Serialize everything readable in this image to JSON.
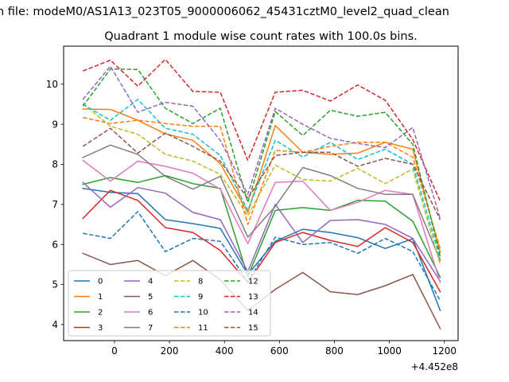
{
  "suptitle": "n file: modeM0/AS1A13_023T05_9000006062_45431cztM0_level2_quad_clean",
  "chart_data": {
    "type": "line",
    "title": "Quadrant 1 module wise count rates with 100.0s bins.",
    "xlabel": "",
    "ylabel": "",
    "x_offset_label": "+4.452e8",
    "xlim": [
      -185,
      1250
    ],
    "ylim": [
      3.6,
      10.95
    ],
    "xticks": [
      0,
      200,
      400,
      600,
      800,
      1000,
      1200
    ],
    "xtick_labels": [
      "0",
      "200",
      "400",
      "600",
      "800",
      "1000",
      "1200"
    ],
    "yticks": [
      4,
      5,
      6,
      7,
      8,
      9,
      10
    ],
    "ytick_labels": [
      "4",
      "5",
      "6",
      "7",
      "8",
      "9",
      "10"
    ],
    "legend_position": "lower-left",
    "legend_columns": 4,
    "x": [
      -115,
      -15,
      85,
      185,
      285,
      385,
      485,
      585,
      685,
      785,
      885,
      985,
      1085,
      1185
    ],
    "series": [
      {
        "name": "0",
        "color": "#1f77b4",
        "dashed": false,
        "values": [
          7.4,
          7.3,
          7.27,
          6.62,
          6.52,
          6.4,
          5.25,
          6.08,
          6.38,
          6.3,
          6.17,
          5.9,
          6.14,
          4.35
        ]
      },
      {
        "name": "1",
        "color": "#ff7f0e",
        "dashed": false,
        "values": [
          9.38,
          9.37,
          9.1,
          8.76,
          8.6,
          8.02,
          6.8,
          8.97,
          8.3,
          8.25,
          8.28,
          8.55,
          8.38,
          5.8
        ]
      },
      {
        "name": "2",
        "color": "#2ca02c",
        "dashed": false,
        "values": [
          7.5,
          7.67,
          7.55,
          7.72,
          7.52,
          7.4,
          5.2,
          6.85,
          6.92,
          6.85,
          7.1,
          7.08,
          6.58,
          5.18
        ]
      },
      {
        "name": "3",
        "color": "#d62728",
        "dashed": false,
        "values": [
          6.65,
          7.35,
          7.1,
          6.42,
          6.3,
          5.85,
          5.05,
          6.05,
          6.3,
          6.1,
          5.95,
          6.42,
          6.05,
          4.82
        ]
      },
      {
        "name": "4",
        "color": "#9467bd",
        "dashed": false,
        "values": [
          7.55,
          6.93,
          7.42,
          7.28,
          6.8,
          6.62,
          5.32,
          7.0,
          6.05,
          6.6,
          6.62,
          6.5,
          6.15,
          5.08
        ]
      },
      {
        "name": "5",
        "color": "#8c564b",
        "dashed": false,
        "values": [
          5.78,
          5.5,
          5.6,
          5.22,
          5.6,
          5.12,
          4.35,
          4.88,
          5.3,
          4.82,
          4.75,
          4.97,
          5.25,
          3.9
        ]
      },
      {
        "name": "6",
        "color": "#e377c2",
        "dashed": false,
        "values": [
          8.1,
          7.58,
          8.08,
          7.95,
          7.78,
          7.38,
          6.02,
          7.55,
          7.58,
          6.85,
          7.05,
          7.35,
          7.25,
          5.05
        ]
      },
      {
        "name": "7",
        "color": "#7f7f7f",
        "dashed": false,
        "values": [
          8.17,
          8.48,
          8.25,
          7.7,
          7.38,
          7.7,
          6.18,
          6.95,
          7.92,
          7.72,
          7.4,
          7.25,
          7.25,
          5.6
        ]
      },
      {
        "name": "8",
        "color": "#bcbd22",
        "dashed": true,
        "values": [
          9.52,
          8.95,
          8.75,
          8.25,
          8.08,
          7.75,
          6.72,
          7.98,
          7.62,
          7.58,
          7.9,
          7.52,
          7.88,
          5.5
        ]
      },
      {
        "name": "9",
        "color": "#17becf",
        "dashed": true,
        "values": [
          9.5,
          9.1,
          9.62,
          8.9,
          8.75,
          8.22,
          6.85,
          8.6,
          8.18,
          8.55,
          8.12,
          8.38,
          8.0,
          5.65
        ]
      },
      {
        "name": "10",
        "color": "#1f77b4",
        "dashed": true,
        "values": [
          6.28,
          6.15,
          6.82,
          5.82,
          6.15,
          6.08,
          5.08,
          6.18,
          6.0,
          6.05,
          5.78,
          6.15,
          5.82,
          4.6
        ]
      },
      {
        "name": "11",
        "color": "#ff7f0e",
        "dashed": true,
        "values": [
          9.17,
          9.02,
          9.1,
          9.02,
          8.95,
          8.95,
          6.5,
          8.35,
          8.3,
          8.45,
          8.55,
          8.55,
          8.18,
          5.9
        ]
      },
      {
        "name": "12",
        "color": "#2ca02c",
        "dashed": true,
        "values": [
          9.45,
          10.38,
          10.37,
          9.4,
          9.02,
          9.4,
          7.05,
          9.32,
          8.72,
          9.35,
          9.2,
          9.3,
          8.5,
          5.7
        ]
      },
      {
        "name": "13",
        "color": "#d62728",
        "dashed": true,
        "values": [
          10.33,
          10.6,
          9.95,
          10.62,
          9.82,
          9.8,
          8.1,
          9.8,
          9.85,
          9.58,
          9.98,
          9.6,
          8.62,
          7.08
        ]
      },
      {
        "name": "14",
        "color": "#9467bd",
        "dashed": true,
        "values": [
          9.62,
          10.45,
          9.3,
          9.55,
          9.45,
          8.6,
          7.25,
          9.4,
          9.0,
          8.65,
          8.52,
          8.42,
          8.92,
          6.65
        ]
      },
      {
        "name": "15",
        "color": "#8c564b",
        "dashed": true,
        "values": [
          8.45,
          8.9,
          8.28,
          8.78,
          8.45,
          8.08,
          7.15,
          8.22,
          8.3,
          8.3,
          7.95,
          8.15,
          8.0,
          6.62
        ]
      }
    ]
  }
}
